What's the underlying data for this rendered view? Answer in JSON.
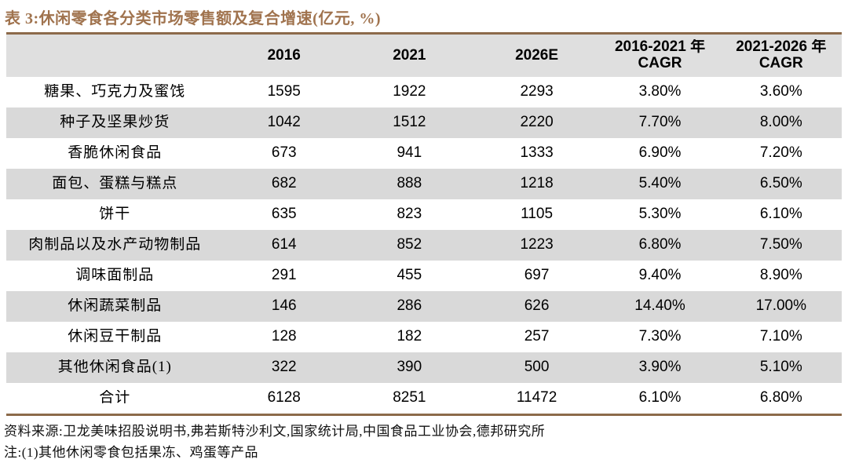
{
  "title": "表 3:休闲零食各分类市场零售额及复合增速(亿元, %)",
  "table": {
    "columns": [
      "",
      "2016",
      "2021",
      "2026E",
      "2016-2021 年\nCAGR",
      "2021-2026 年\nCAGR"
    ],
    "rows": [
      {
        "category": "糖果、巧克力及蜜饯",
        "v2016": "1595",
        "v2021": "1922",
        "v2026e": "2293",
        "cagr_2016_2021": "3.80%",
        "cagr_2021_2026": "3.60%"
      },
      {
        "category": "种子及坚果炒货",
        "v2016": "1042",
        "v2021": "1512",
        "v2026e": "2220",
        "cagr_2016_2021": "7.70%",
        "cagr_2021_2026": "8.00%"
      },
      {
        "category": "香脆休闲食品",
        "v2016": "673",
        "v2021": "941",
        "v2026e": "1333",
        "cagr_2016_2021": "6.90%",
        "cagr_2021_2026": "7.20%"
      },
      {
        "category": "面包、蛋糕与糕点",
        "v2016": "682",
        "v2021": "888",
        "v2026e": "1218",
        "cagr_2016_2021": "5.40%",
        "cagr_2021_2026": "6.50%"
      },
      {
        "category": "饼干",
        "v2016": "635",
        "v2021": "823",
        "v2026e": "1105",
        "cagr_2016_2021": "5.30%",
        "cagr_2021_2026": "6.10%"
      },
      {
        "category": "肉制品以及水产动物制品",
        "v2016": "614",
        "v2021": "852",
        "v2026e": "1223",
        "cagr_2016_2021": "6.80%",
        "cagr_2021_2026": "7.50%"
      },
      {
        "category": "调味面制品",
        "v2016": "291",
        "v2021": "455",
        "v2026e": "697",
        "cagr_2016_2021": "9.40%",
        "cagr_2021_2026": "8.90%"
      },
      {
        "category": "休闲蔬菜制品",
        "v2016": "146",
        "v2021": "286",
        "v2026e": "626",
        "cagr_2016_2021": "14.40%",
        "cagr_2021_2026": "17.00%"
      },
      {
        "category": "休闲豆干制品",
        "v2016": "128",
        "v2021": "182",
        "v2026e": "257",
        "cagr_2016_2021": "7.30%",
        "cagr_2021_2026": "7.10%"
      },
      {
        "category": "其他休闲食品(1)",
        "v2016": "322",
        "v2021": "390",
        "v2026e": "500",
        "cagr_2016_2021": "3.90%",
        "cagr_2021_2026": "5.10%"
      },
      {
        "category": "合计",
        "v2016": "6128",
        "v2021": "8251",
        "v2026e": "11472",
        "cagr_2016_2021": "6.10%",
        "cagr_2021_2026": "6.80%"
      }
    ]
  },
  "footnotes": {
    "source": "资料来源:卫龙美味招股说明书,弗若斯特沙利文,国家统计局,中国食品工业协会,德邦研究所",
    "note": "注:(1)其他休闲零食包括果冻、鸡蛋等产品"
  },
  "colors": {
    "accent_brown": "#A0734E",
    "rule_brown": "#8C6A4A",
    "header_bg": "#DFDFDF",
    "stripe_gray": "#D9D9D9"
  }
}
